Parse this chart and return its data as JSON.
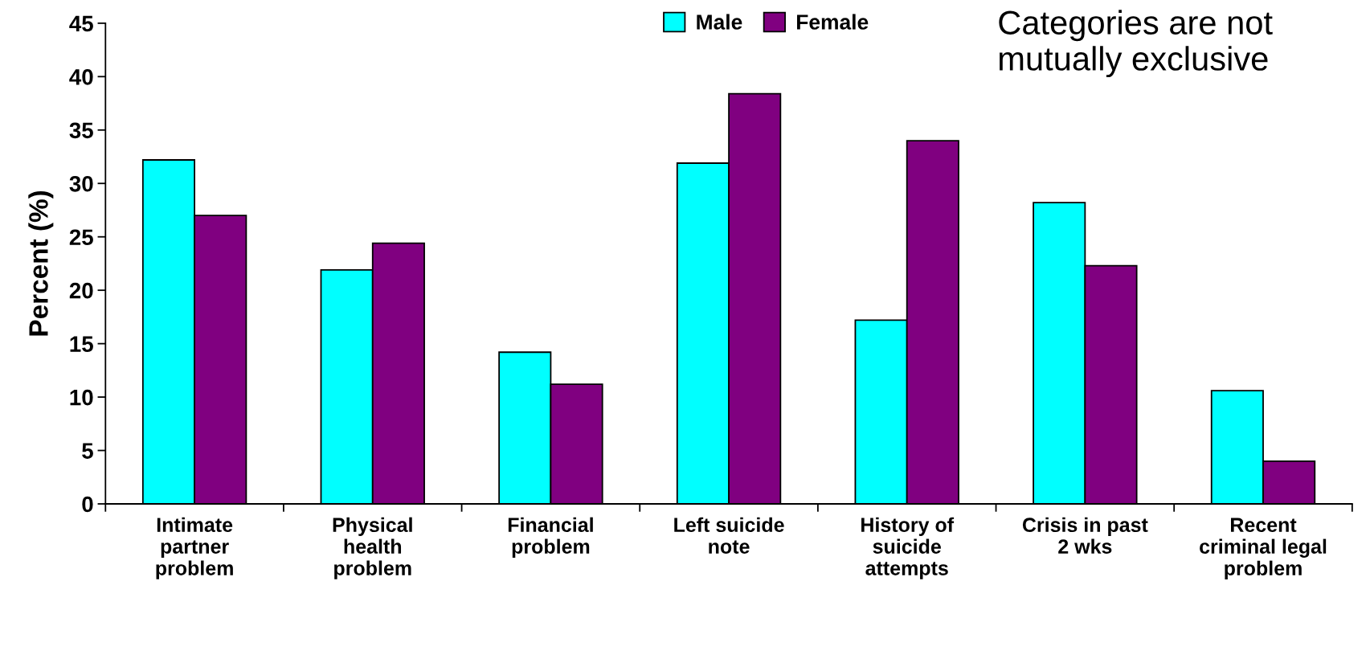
{
  "chart_data": {
    "type": "bar",
    "ylabel": "Percent (%)",
    "categories": [
      "Intimate\npartner\nproblem",
      "Physical\nhealth\nproblem",
      "Financial\nproblem",
      "Left suicide\nnote",
      "History of\nsuicide\nattempts",
      "Crisis in past\n2 wks",
      "Recent\ncriminal legal\nproblem"
    ],
    "series": [
      {
        "name": "Male",
        "color": "#00ffff",
        "values": [
          32.2,
          21.9,
          14.2,
          31.9,
          17.2,
          28.2,
          10.6
        ]
      },
      {
        "name": "Female",
        "color": "#800080",
        "values": [
          27.0,
          24.4,
          11.2,
          38.4,
          34.0,
          22.3,
          4.0
        ]
      }
    ],
    "ylim": [
      0,
      45
    ],
    "yticks": [
      0,
      5,
      10,
      15,
      20,
      25,
      30,
      35,
      40,
      45
    ],
    "grid": false,
    "legend": "top",
    "annotations": [
      "Categories are not\nmutually exclusive"
    ]
  }
}
